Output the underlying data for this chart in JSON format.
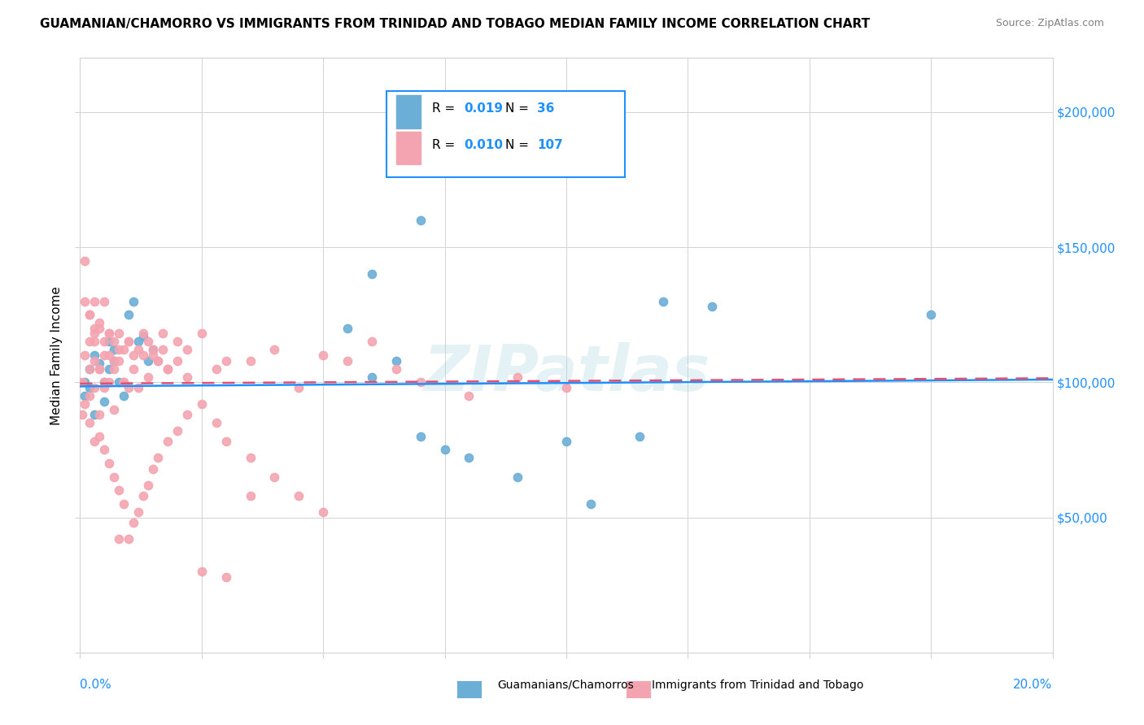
{
  "title": "GUAMANIAN/CHAMORRO VS IMMIGRANTS FROM TRINIDAD AND TOBAGO MEDIAN FAMILY INCOME CORRELATION CHART",
  "source": "Source: ZipAtlas.com",
  "ylabel": "Median Family Income",
  "series1_label": "Guamanians/Chamorros",
  "series1_color": "#6baed6",
  "series1_R": "0.019",
  "series1_N": "36",
  "series2_label": "Immigrants from Trinidad and Tobago",
  "series2_color": "#f4a4b0",
  "series2_R": "0.010",
  "series2_N": "107",
  "watermark": "ZIPatlas",
  "xlim": [
    0.0,
    0.2
  ],
  "ylim": [
    0,
    220000
  ],
  "yticks": [
    0,
    50000,
    100000,
    150000,
    200000
  ],
  "ytick_labels": [
    "",
    "$50,000",
    "$100,000",
    "$150,000",
    "$200,000"
  ],
  "series1_x": [
    0.001,
    0.001,
    0.002,
    0.002,
    0.003,
    0.003,
    0.004,
    0.005,
    0.005,
    0.006,
    0.006,
    0.007,
    0.007,
    0.008,
    0.009,
    0.01,
    0.011,
    0.012,
    0.013,
    0.014,
    0.015,
    0.055,
    0.06,
    0.065,
    0.07,
    0.075,
    0.08,
    0.09,
    0.1,
    0.105,
    0.115,
    0.13,
    0.175,
    0.06,
    0.07,
    0.12
  ],
  "series1_y": [
    100000,
    95000,
    105000,
    98000,
    88000,
    110000,
    107000,
    100000,
    93000,
    115000,
    105000,
    112000,
    108000,
    100000,
    95000,
    125000,
    130000,
    115000,
    117000,
    108000,
    112000,
    120000,
    102000,
    108000,
    80000,
    75000,
    72000,
    65000,
    78000,
    55000,
    80000,
    128000,
    125000,
    140000,
    160000,
    130000
  ],
  "series2_x": [
    0.0005,
    0.001,
    0.001,
    0.001,
    0.002,
    0.002,
    0.002,
    0.002,
    0.003,
    0.003,
    0.003,
    0.003,
    0.004,
    0.004,
    0.004,
    0.005,
    0.005,
    0.005,
    0.006,
    0.006,
    0.007,
    0.007,
    0.008,
    0.008,
    0.009,
    0.009,
    0.01,
    0.01,
    0.011,
    0.012,
    0.013,
    0.014,
    0.015,
    0.016,
    0.017,
    0.018,
    0.02,
    0.022,
    0.025,
    0.028,
    0.03,
    0.035,
    0.04,
    0.045,
    0.05,
    0.055,
    0.06,
    0.065,
    0.07,
    0.08,
    0.09,
    0.1,
    0.0005,
    0.001,
    0.002,
    0.003,
    0.004,
    0.005,
    0.006,
    0.007,
    0.008,
    0.009,
    0.01,
    0.011,
    0.012,
    0.013,
    0.014,
    0.015,
    0.016,
    0.018,
    0.02,
    0.022,
    0.025,
    0.028,
    0.03,
    0.035,
    0.04,
    0.045,
    0.05,
    0.002,
    0.003,
    0.004,
    0.005,
    0.006,
    0.007,
    0.008,
    0.009,
    0.01,
    0.011,
    0.012,
    0.013,
    0.014,
    0.015,
    0.016,
    0.017,
    0.018,
    0.02,
    0.022,
    0.003,
    0.004,
    0.005,
    0.006,
    0.007,
    0.008,
    0.025,
    0.03,
    0.035
  ],
  "series2_y": [
    100000,
    130000,
    145000,
    110000,
    125000,
    115000,
    105000,
    95000,
    120000,
    108000,
    98000,
    118000,
    122000,
    105000,
    88000,
    130000,
    115000,
    100000,
    118000,
    110000,
    115000,
    105000,
    118000,
    108000,
    112000,
    100000,
    115000,
    98000,
    110000,
    112000,
    118000,
    115000,
    110000,
    108000,
    112000,
    105000,
    108000,
    112000,
    118000,
    105000,
    108000,
    108000,
    112000,
    98000,
    110000,
    108000,
    115000,
    105000,
    100000,
    95000,
    102000,
    98000,
    88000,
    92000,
    85000,
    78000,
    80000,
    75000,
    70000,
    65000,
    60000,
    55000,
    42000,
    48000,
    52000,
    58000,
    62000,
    68000,
    72000,
    78000,
    82000,
    88000,
    92000,
    85000,
    78000,
    72000,
    65000,
    58000,
    52000,
    125000,
    115000,
    105000,
    98000,
    118000,
    108000,
    112000,
    100000,
    115000,
    105000,
    98000,
    110000,
    102000,
    112000,
    108000,
    118000,
    105000,
    115000,
    102000,
    130000,
    120000,
    110000,
    100000,
    90000,
    42000,
    30000,
    28000,
    58000
  ]
}
